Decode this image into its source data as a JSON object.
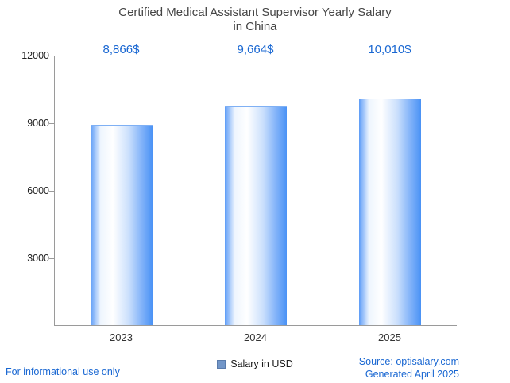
{
  "title": {
    "line1": "Certified Medical Assistant Supervisor Yearly Salary",
    "line2": "in China"
  },
  "chart_data": {
    "type": "bar",
    "title": "Certified Medical Assistant Supervisor Yearly Salary in China",
    "categories": [
      "2023",
      "2024",
      "2025"
    ],
    "values": [
      8866,
      9664,
      10010
    ],
    "value_labels": [
      "8,866$",
      "9,664$",
      "10,010$"
    ],
    "xlabel": "",
    "ylabel": "",
    "ylim": [
      0,
      12000
    ],
    "yticks": [
      3000,
      6000,
      9000,
      12000
    ],
    "grid": false,
    "legend": "Salary in USD",
    "legend_position": "bottom",
    "bar_color_edge": "#4a92f5",
    "bar_color_center": "#ffffff"
  },
  "footer": {
    "left": "For informational use only",
    "source": "Source: optisalary.com",
    "generated": "Generated April 2025"
  },
  "colors": {
    "accent_text": "#1967d2",
    "title_text": "#454545",
    "axis": "#9a9a9a"
  }
}
